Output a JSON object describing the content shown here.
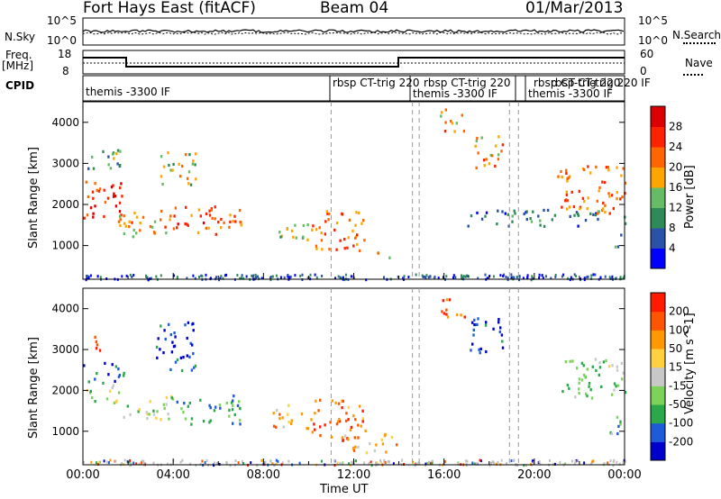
{
  "header": {
    "station": "Fort Hays East (fitACF)",
    "beam": "Beam 04",
    "date": "01/Mar/2013"
  },
  "top_panel": {
    "left_label": "N.Sky",
    "right_label": "N.Search",
    "left_ticks": [
      "10^5",
      "10^0"
    ],
    "right_ticks": [
      "10^5",
      "10^0"
    ]
  },
  "freq_panel": {
    "left_label_line1": "Freq.",
    "left_label_line2": "[MHz]",
    "right_label": "Nave",
    "left_ticks": [
      "18",
      "8"
    ],
    "right_ticks": [
      "60",
      "0"
    ]
  },
  "cpid": {
    "label": "CPID",
    "segments": [
      {
        "name": "themis -3300 IF"
      },
      {
        "name": "rbsp CT-trig 220"
      },
      {
        "name": "rbsp CT-trig 220"
      },
      {
        "name": "themis -3300 IF"
      },
      {
        "name": "rbsp CT-trig 220"
      },
      {
        "name": "themis -3300 IF"
      },
      {
        "name": "rbsp CT-trig 220 IF"
      }
    ]
  },
  "x_axis": {
    "label": "Time UT",
    "ticks": [
      "00:00",
      "04:00",
      "08:00",
      "12:00",
      "16:00",
      "20:00",
      "00:00"
    ]
  },
  "colors": {
    "power": [
      "#0000ff",
      "#2a52a8",
      "#2e8b57",
      "#66bb66",
      "#ffa500",
      "#ff6600",
      "#ff2200",
      "#dd0000"
    ],
    "velocity": [
      "#0000cc",
      "#1e5bd8",
      "#2aa84a",
      "#7dd35a",
      "#c8c8c8",
      "#ffd040",
      "#ff9900",
      "#ff5500",
      "#ff1a00"
    ],
    "ground_scatter": "#c0c0c0"
  },
  "chart_data": [
    {
      "type": "heatmap",
      "title": "",
      "xlabel": "Time UT",
      "ylabel": "Slant Range [km]",
      "x_ticks": [
        "00:00",
        "04:00",
        "08:00",
        "12:00",
        "16:00",
        "20:00",
        "00:00"
      ],
      "y_ticks": [
        1000,
        2000,
        3000,
        4000
      ],
      "colorbar": {
        "label": "Power [dB]",
        "ticks": [
          4,
          8,
          12,
          16,
          20,
          24,
          28
        ]
      },
      "xlim": [
        0,
        24
      ],
      "ylim": [
        180,
        4500
      ],
      "regions": [
        {
          "t0": 0.0,
          "t1": 1.8,
          "r0": 1700,
          "r1": 2700,
          "level": 0.85
        },
        {
          "t0": 0.2,
          "t1": 2.1,
          "r0": 2900,
          "r1": 3400,
          "level": 0.4
        },
        {
          "t0": 1.5,
          "t1": 4.0,
          "r0": 1200,
          "r1": 1900,
          "level": 0.6
        },
        {
          "t0": 3.3,
          "t1": 5.0,
          "r0": 2500,
          "r1": 3300,
          "level": 0.5
        },
        {
          "t0": 3.8,
          "t1": 7.2,
          "r0": 1300,
          "r1": 2000,
          "level": 0.75
        },
        {
          "t0": 8.6,
          "t1": 10.0,
          "r0": 1000,
          "r1": 1600,
          "level": 0.45
        },
        {
          "t0": 10.1,
          "t1": 12.5,
          "r0": 900,
          "r1": 1900,
          "level": 0.7
        },
        {
          "t0": 13.0,
          "t1": 14.0,
          "r0": 700,
          "r1": 900,
          "level": 0.55
        },
        {
          "t0": 15.8,
          "t1": 16.9,
          "r0": 3800,
          "r1": 4400,
          "level": 0.65
        },
        {
          "t0": 17.2,
          "t1": 18.6,
          "r0": 2900,
          "r1": 3700,
          "level": 0.6
        },
        {
          "t0": 17.0,
          "t1": 24.0,
          "r0": 1500,
          "r1": 1900,
          "level": 0.25
        },
        {
          "t0": 21.0,
          "t1": 24.0,
          "r0": 1800,
          "r1": 3000,
          "level": 0.7
        },
        {
          "t0": 23.5,
          "t1": 24.0,
          "r0": 1000,
          "r1": 1400,
          "level": 0.3
        }
      ]
    },
    {
      "type": "heatmap",
      "title": "",
      "xlabel": "Time UT",
      "ylabel": "Slant Range [km]",
      "x_ticks": [
        "00:00",
        "04:00",
        "08:00",
        "12:00",
        "16:00",
        "20:00",
        "00:00"
      ],
      "y_ticks": [
        1000,
        2000,
        3000,
        4000
      ],
      "colorbar": {
        "label": "Velocity [m s^-1]",
        "ticks": [
          200,
          100,
          50,
          15,
          -15,
          -50,
          -100,
          -200
        ]
      },
      "xlim": [
        0,
        24
      ],
      "ylim": [
        180,
        4500
      ],
      "regions": [
        {
          "t0": 0.0,
          "t1": 1.8,
          "r0": 2200,
          "r1": 2700,
          "level": 0.15
        },
        {
          "t0": 0.0,
          "t1": 1.6,
          "r0": 1700,
          "r1": 2200,
          "level": 0.45
        },
        {
          "t0": 0.2,
          "t1": 1.0,
          "r0": 3000,
          "r1": 3400,
          "level": 0.85
        },
        {
          "t0": 1.6,
          "t1": 4.0,
          "r0": 1300,
          "r1": 1900,
          "level": 0.45
        },
        {
          "t0": 3.2,
          "t1": 5.0,
          "r0": 2500,
          "r1": 3700,
          "level": 0.1
        },
        {
          "t0": 4.0,
          "t1": 7.0,
          "r0": 1200,
          "r1": 1900,
          "level": 0.25
        },
        {
          "t0": 8.4,
          "t1": 10.0,
          "r0": 1100,
          "r1": 1700,
          "level": 0.7
        },
        {
          "t0": 10.0,
          "t1": 12.5,
          "r0": 800,
          "r1": 1800,
          "level": 0.8
        },
        {
          "t0": 11.5,
          "t1": 13.5,
          "r0": 500,
          "r1": 1000,
          "level": 0.65
        },
        {
          "t0": 13.2,
          "t1": 14.2,
          "r0": 700,
          "r1": 900,
          "level": 0.75
        },
        {
          "t0": 15.7,
          "t1": 17.0,
          "r0": 3800,
          "r1": 4300,
          "level": 0.9
        },
        {
          "t0": 17.0,
          "t1": 18.6,
          "r0": 2900,
          "r1": 3800,
          "level": 0.1
        },
        {
          "t0": 21.2,
          "t1": 24.0,
          "r0": 1800,
          "r1": 2800,
          "level": 0.4
        },
        {
          "t0": 23.3,
          "t1": 24.0,
          "r0": 800,
          "r1": 1400,
          "level": 0.3
        }
      ]
    }
  ]
}
